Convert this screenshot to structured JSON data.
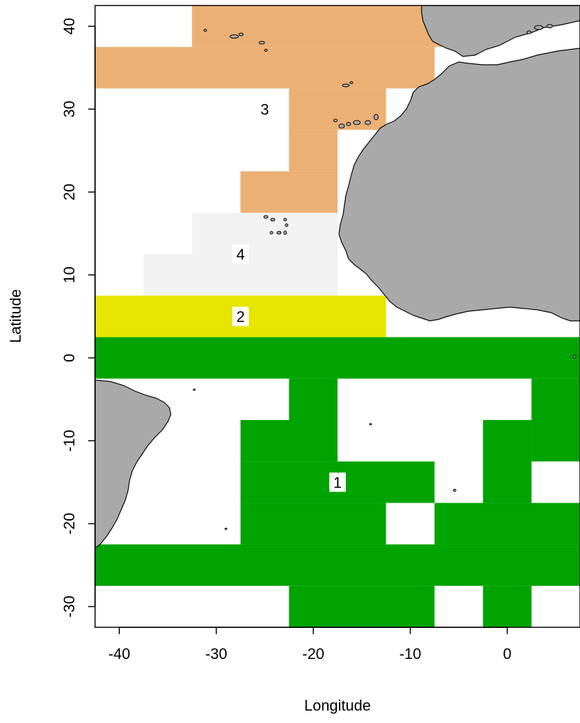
{
  "map": {
    "xlabel": "Longitude",
    "ylabel": "Latitude",
    "xlim": [
      -42.5,
      7.5
    ],
    "ylim": [
      -32.5,
      42.5
    ],
    "x_ticks": [
      {
        "value": -40,
        "label": "-40"
      },
      {
        "value": -30,
        "label": "-30"
      },
      {
        "value": -20,
        "label": "-20"
      },
      {
        "value": -10,
        "label": "-10"
      },
      {
        "value": 0,
        "label": "0"
      }
    ],
    "y_ticks": [
      {
        "value": -30,
        "label": "-30"
      },
      {
        "value": -20,
        "label": "-20"
      },
      {
        "value": -10,
        "label": "-10"
      },
      {
        "value": 0,
        "label": "0"
      },
      {
        "value": 10,
        "label": "10"
      },
      {
        "value": 20,
        "label": "20"
      },
      {
        "value": 30,
        "label": "30"
      },
      {
        "value": 40,
        "label": "40"
      }
    ],
    "colors": {
      "zone1": "#00a300",
      "zone2": "#e6e600",
      "zone3": "#ebb074",
      "zone4": "#f2f2f2",
      "land": "#a9a9a9"
    },
    "zones": [
      {
        "id": "1",
        "label": "1",
        "color_key": "zone1",
        "label_lon": -17.5,
        "label_lat": -15,
        "cells": [
          [
            -42.5,
            -2.5,
            7.5,
            2.5
          ],
          [
            -22.5,
            -7.5,
            -17.5,
            -2.5
          ],
          [
            2.5,
            -7.5,
            7.5,
            -2.5
          ],
          [
            -27.5,
            -12.5,
            -17.5,
            -7.5
          ],
          [
            2.5,
            -12.5,
            7.5,
            -7.5
          ],
          [
            -27.5,
            -17.5,
            -7.5,
            -12.5
          ],
          [
            -2.5,
            -17.5,
            2.5,
            -7.5
          ],
          [
            -27.5,
            -22.5,
            -12.5,
            -17.5
          ],
          [
            -7.5,
            -22.5,
            7.5,
            -17.5
          ],
          [
            -42.5,
            -27.5,
            7.5,
            -22.5
          ],
          [
            -22.5,
            -32.5,
            -7.5,
            -27.5
          ],
          [
            -2.5,
            -32.5,
            2.5,
            -27.5
          ]
        ]
      },
      {
        "id": "2",
        "label": "2",
        "color_key": "zone2",
        "label_lon": -27.5,
        "label_lat": 5,
        "cells": [
          [
            -42.5,
            2.5,
            -12.5,
            7.5
          ]
        ]
      },
      {
        "id": "3",
        "label": "3",
        "color_key": "zone3",
        "label_lon": -25,
        "label_lat": 30,
        "cells": [
          [
            -32.5,
            37.5,
            -2.5,
            42.5
          ],
          [
            -42.5,
            32.5,
            -7.5,
            37.5
          ],
          [
            -22.5,
            27.5,
            -12.5,
            32.5
          ],
          [
            -22.5,
            22.5,
            -17.5,
            27.5
          ],
          [
            -27.5,
            17.5,
            -17.5,
            22.5
          ]
        ]
      },
      {
        "id": "4",
        "label": "4",
        "color_key": "zone4",
        "label_lon": -27.5,
        "label_lat": 12.5,
        "cells": [
          [
            -32.5,
            12.5,
            -17.5,
            17.5
          ],
          [
            -37.5,
            7.5,
            -17.5,
            12.5
          ]
        ]
      }
    ]
  }
}
